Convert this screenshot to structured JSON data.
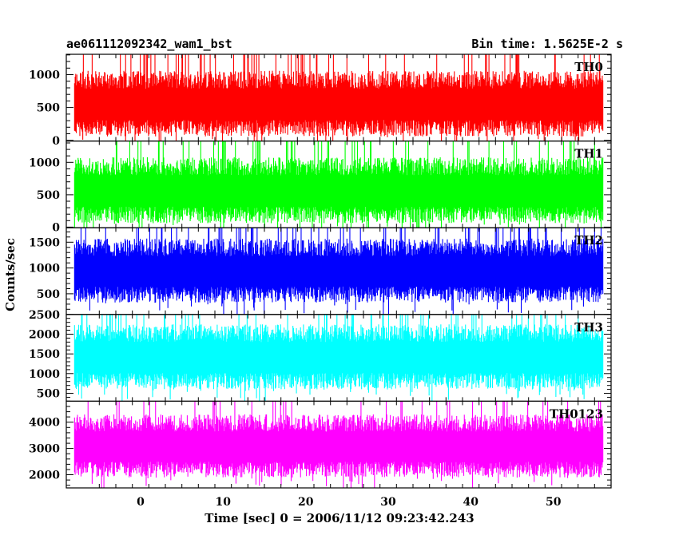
{
  "header": {
    "title_left": "ae061112092342_wam1_bst",
    "title_right": "Bin time: 1.5625E-2 s"
  },
  "chart_data": {
    "type": "line",
    "title": "ae061112092342_wam1_bst",
    "subtitle": "Bin time: 1.5625E-2 s",
    "xlabel": "Time [sec] 0 = 2006/11/12 09:23:42.243",
    "ylabel": "Counts/sec",
    "xlim": [
      -9,
      57
    ],
    "x_ticks": [
      0,
      10,
      20,
      30,
      40,
      50
    ],
    "data_x_range": [
      -8,
      56
    ],
    "bin_time_s": 0.015625,
    "panels": [
      {
        "name": "TH0",
        "color": "#ff0000",
        "ylim": [
          -10,
          1310
        ],
        "y_ticks": [
          0,
          500,
          1000
        ],
        "typical_range": [
          60,
          1060
        ],
        "mean": 560
      },
      {
        "name": "TH1",
        "color": "#00ff00",
        "ylim": [
          -10,
          1330
        ],
        "y_ticks": [
          0,
          500,
          1000
        ],
        "typical_range": [
          60,
          1080
        ],
        "mean": 570
      },
      {
        "name": "TH2",
        "color": "#0000ff",
        "ylim": [
          100,
          1780
        ],
        "y_ticks": [
          500,
          1000,
          1500
        ],
        "typical_range": [
          330,
          1570
        ],
        "mean": 950
      },
      {
        "name": "TH3",
        "color": "#00ffff",
        "ylim": [
          300,
          2500
        ],
        "y_ticks": [
          500,
          1000,
          1500,
          2000,
          2500
        ],
        "typical_range": [
          600,
          2250
        ],
        "mean": 1430
      },
      {
        "name": "TH0123",
        "color": "#ff00ff",
        "ylim": [
          1500,
          4800
        ],
        "y_ticks": [
          2000,
          3000,
          4000
        ],
        "typical_range": [
          1900,
          4300
        ],
        "mean": 3100
      }
    ]
  }
}
